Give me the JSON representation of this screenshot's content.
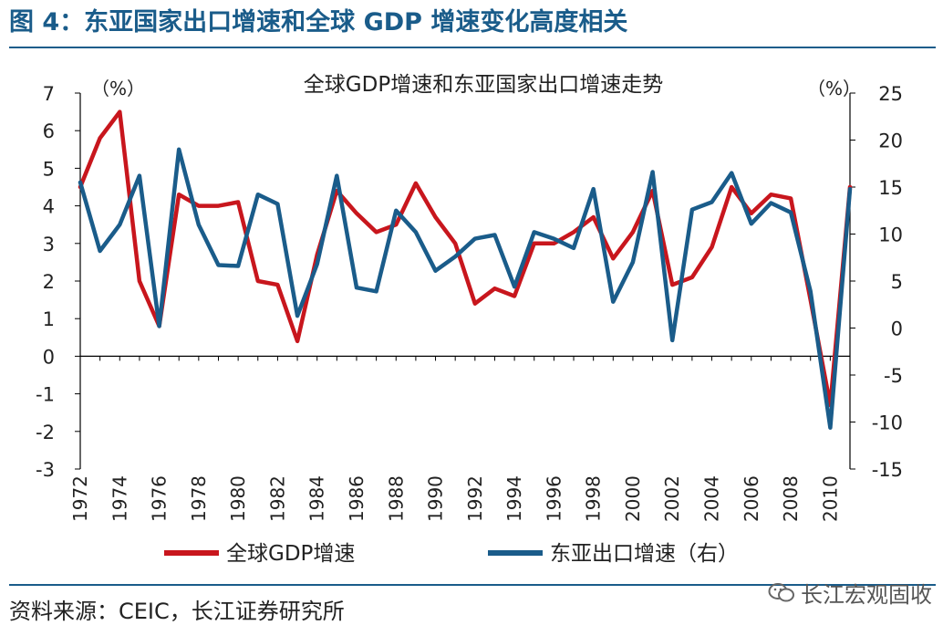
{
  "figure_title": "图 4：东亚国家出口增速和全球 GDP 增速变化高度相关",
  "source": "资料来源：CEIC，长江证券研究所",
  "watermark": "长江宏观固收",
  "chart_data": {
    "type": "line",
    "title": "全球GDP增速和东亚国家出口增速走势",
    "left_unit": "（%）",
    "right_unit": "（%）",
    "y_left": {
      "min": -3,
      "max": 7,
      "ticks": [
        "7",
        "6",
        "5",
        "4",
        "3",
        "2",
        "1",
        "0",
        "-1",
        "-2",
        "-3"
      ]
    },
    "y_right": {
      "min": -15,
      "max": 25,
      "ticks": [
        "25",
        "20",
        "15",
        "10",
        "5",
        "0",
        "-5",
        "-10",
        "-15"
      ]
    },
    "x_tick_labels": [
      "1972",
      "1974",
      "1976",
      "1978",
      "1980",
      "1982",
      "1984",
      "1986",
      "1988",
      "1990",
      "1992",
      "1994",
      "1996",
      "1998",
      "2000",
      "2002",
      "2004",
      "2006",
      "2008",
      "2010"
    ],
    "x": [
      1972,
      1973,
      1974,
      1975,
      1976,
      1977,
      1978,
      1979,
      1980,
      1981,
      1982,
      1983,
      1984,
      1985,
      1986,
      1987,
      1988,
      1989,
      1990,
      1991,
      1992,
      1993,
      1994,
      1995,
      1996,
      1997,
      1998,
      1999,
      2000,
      2001,
      2002,
      2003,
      2004,
      2005,
      2006,
      2007,
      2008,
      2009,
      2010,
      2011
    ],
    "series": [
      {
        "name": "全球GDP增速",
        "axis": "left",
        "color": "#c8161d",
        "values": [
          4.5,
          5.8,
          6.5,
          2.0,
          0.8,
          4.3,
          4.0,
          4.0,
          4.1,
          2.0,
          1.9,
          0.4,
          2.7,
          4.4,
          3.8,
          3.3,
          3.5,
          4.6,
          3.7,
          3.0,
          1.4,
          1.8,
          1.6,
          3.0,
          3.0,
          3.3,
          3.7,
          2.6,
          3.3,
          4.4,
          1.9,
          2.1,
          2.9,
          4.5,
          3.8,
          4.3,
          4.2,
          1.5,
          -1.3,
          4.5
        ]
      },
      {
        "name": "东亚出口增速（右）",
        "axis": "right",
        "color": "#1a5c8a",
        "values": [
          15.5,
          8.2,
          11.0,
          16.2,
          0.2,
          19.0,
          11.0,
          6.7,
          6.6,
          14.2,
          13.2,
          1.3,
          6.8,
          16.2,
          4.3,
          3.9,
          12.5,
          10.2,
          6.1,
          7.6,
          9.5,
          9.9,
          4.4,
          10.2,
          9.5,
          8.5,
          14.8,
          2.8,
          7.0,
          16.6,
          -1.3,
          12.6,
          13.4,
          16.5,
          11.1,
          13.3,
          12.3,
          3.9,
          -10.6,
          14.8
        ]
      }
    ]
  }
}
